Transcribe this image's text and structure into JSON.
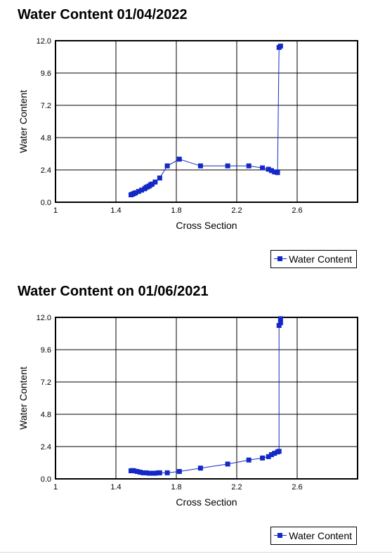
{
  "colors": {
    "series": "#1428c8",
    "frame": "#000000",
    "grid": "#000000"
  },
  "chart_data": [
    {
      "type": "line",
      "title": "Water Content 01/04/2022",
      "xlabel": "Cross Section",
      "ylabel": "Water Content",
      "xlim": [
        1,
        3
      ],
      "ylim": [
        0,
        12
      ],
      "xticks": [
        "1",
        "1.4",
        "1.8",
        "2.2",
        "2.6"
      ],
      "xtick_values": [
        1,
        1.4,
        1.8,
        2.2,
        2.6
      ],
      "yticks": [
        "0.0",
        "2.4",
        "4.8",
        "7.2",
        "9.6",
        "12.0"
      ],
      "ytick_values": [
        0,
        2.4,
        4.8,
        7.2,
        9.6,
        12.0
      ],
      "grid": true,
      "legend": "bottom-right",
      "series": [
        {
          "name": "Water Content",
          "x": [
            1.5,
            1.51,
            1.52,
            1.53,
            1.55,
            1.57,
            1.59,
            1.6,
            1.61,
            1.62,
            1.63,
            1.64,
            1.66,
            1.69,
            1.74,
            1.82,
            1.96,
            2.14,
            2.28,
            2.37,
            2.41,
            2.43,
            2.45,
            2.47,
            2.48,
            2.49
          ],
          "y": [
            0.55,
            0.6,
            0.65,
            0.7,
            0.8,
            0.9,
            1.0,
            1.1,
            1.15,
            1.2,
            1.3,
            1.35,
            1.5,
            1.8,
            2.7,
            3.2,
            2.7,
            2.7,
            2.7,
            2.55,
            2.45,
            2.35,
            2.25,
            2.2,
            11.5,
            11.6
          ]
        }
      ]
    },
    {
      "type": "line",
      "title": "Water Content on 01/06/2021",
      "xlabel": "Cross Section",
      "ylabel": "Water Content",
      "xlim": [
        1,
        3
      ],
      "ylim": [
        0,
        12
      ],
      "xticks": [
        "1",
        "1.4",
        "1.8",
        "2.2",
        "2.6"
      ],
      "xtick_values": [
        1,
        1.4,
        1.8,
        2.2,
        2.6
      ],
      "yticks": [
        "0.0",
        "2.4",
        "4.8",
        "7.2",
        "9.6",
        "12.0"
      ],
      "ytick_values": [
        0,
        2.4,
        4.8,
        7.2,
        9.6,
        12.0
      ],
      "grid": true,
      "legend": "bottom-right",
      "series": [
        {
          "name": "Water Content",
          "x": [
            1.5,
            1.51,
            1.52,
            1.54,
            1.56,
            1.58,
            1.6,
            1.62,
            1.64,
            1.66,
            1.68,
            1.69,
            1.74,
            1.82,
            1.96,
            2.14,
            2.28,
            2.37,
            2.41,
            2.43,
            2.45,
            2.47,
            2.48,
            2.48,
            2.49,
            2.49
          ],
          "y": [
            0.6,
            0.62,
            0.6,
            0.55,
            0.5,
            0.45,
            0.45,
            0.42,
            0.42,
            0.42,
            0.45,
            0.45,
            0.45,
            0.55,
            0.8,
            1.1,
            1.4,
            1.55,
            1.65,
            1.8,
            1.9,
            2.0,
            2.05,
            11.4,
            11.6,
            11.9
          ]
        }
      ]
    }
  ]
}
